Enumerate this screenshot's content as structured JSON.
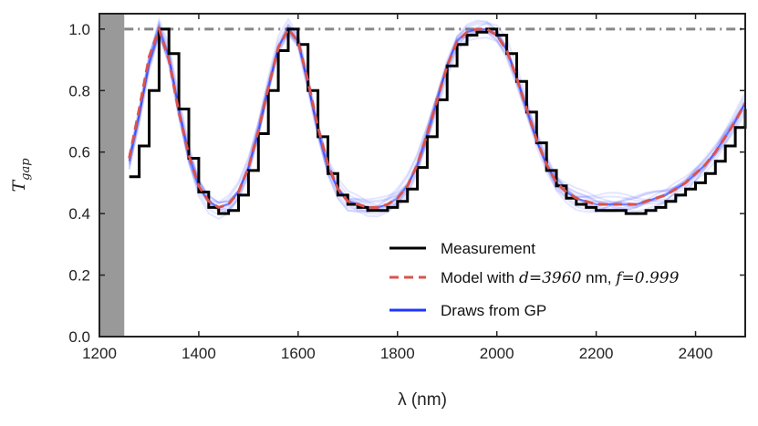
{
  "chart_data": {
    "type": "line",
    "xlabel": "λ (nm)",
    "ylabel": "T_gap",
    "ylabel_main": "T",
    "ylabel_sub": "gap",
    "xlim": [
      1200,
      2500
    ],
    "ylim": [
      0.0,
      1.05
    ],
    "xticks": [
      1200,
      1400,
      1600,
      1800,
      2000,
      2200,
      2400
    ],
    "yticks": [
      0.0,
      0.2,
      0.4,
      0.6,
      0.8,
      1.0
    ],
    "xtick_labels": [
      "1200",
      "1400",
      "1600",
      "1800",
      "2000",
      "2200",
      "2400"
    ],
    "ytick_labels": [
      "0.0",
      "0.2",
      "0.4",
      "0.6",
      "0.8",
      "1.0"
    ],
    "shaded_region": {
      "x": [
        1200,
        1250
      ],
      "color": "#999999"
    },
    "reference_line": {
      "y": 1.0,
      "style": "dash-dot",
      "color": "#888888"
    },
    "legend": {
      "placement": "bottom-right",
      "entries": [
        {
          "label": "Measurement",
          "color": "#000000",
          "style": "solid"
        },
        {
          "label": "Model with d=3960 nm, f=0.999",
          "label_pre": "Model with ",
          "label_d": "d",
          "label_d_val": "=3960",
          "label_mid": " nm, ",
          "label_f": "f",
          "label_f_val": "=0.999",
          "color": "#d9534f",
          "style": "dashed"
        },
        {
          "label": "Draws from GP",
          "color": "#1f35ff",
          "style": "solid"
        }
      ]
    },
    "series": [
      {
        "name": "Measurement",
        "color": "#000000",
        "style": "step",
        "x": [
          1260,
          1280,
          1300,
          1320,
          1340,
          1360,
          1380,
          1400,
          1420,
          1440,
          1460,
          1480,
          1500,
          1520,
          1540,
          1560,
          1580,
          1600,
          1620,
          1640,
          1660,
          1680,
          1700,
          1720,
          1740,
          1760,
          1780,
          1800,
          1820,
          1840,
          1860,
          1880,
          1900,
          1920,
          1940,
          1960,
          1980,
          2000,
          2020,
          2040,
          2060,
          2080,
          2100,
          2120,
          2140,
          2160,
          2180,
          2200,
          2220,
          2240,
          2260,
          2280,
          2300,
          2320,
          2340,
          2360,
          2380,
          2400,
          2420,
          2440,
          2460,
          2480,
          2500
        ],
        "y": [
          0.52,
          0.62,
          0.8,
          1.0,
          0.92,
          0.74,
          0.58,
          0.47,
          0.42,
          0.4,
          0.41,
          0.46,
          0.54,
          0.66,
          0.8,
          0.93,
          1.0,
          0.95,
          0.8,
          0.65,
          0.53,
          0.46,
          0.43,
          0.42,
          0.41,
          0.41,
          0.42,
          0.44,
          0.48,
          0.55,
          0.65,
          0.77,
          0.88,
          0.95,
          0.98,
          0.99,
          1.0,
          0.98,
          0.92,
          0.83,
          0.73,
          0.63,
          0.54,
          0.49,
          0.45,
          0.43,
          0.42,
          0.41,
          0.41,
          0.41,
          0.4,
          0.4,
          0.41,
          0.42,
          0.44,
          0.46,
          0.48,
          0.5,
          0.53,
          0.57,
          0.62,
          0.68,
          0.74
        ]
      },
      {
        "name": "Model with d=3960 nm, f=0.999",
        "color": "#d9534f",
        "style": "dashed",
        "x": [
          1260,
          1280,
          1300,
          1320,
          1340,
          1360,
          1380,
          1400,
          1420,
          1440,
          1460,
          1480,
          1500,
          1520,
          1540,
          1560,
          1580,
          1600,
          1620,
          1640,
          1660,
          1680,
          1700,
          1720,
          1740,
          1760,
          1780,
          1800,
          1820,
          1840,
          1860,
          1880,
          1900,
          1920,
          1940,
          1960,
          1980,
          2000,
          2020,
          2040,
          2060,
          2080,
          2100,
          2120,
          2140,
          2160,
          2180,
          2200,
          2220,
          2240,
          2260,
          2280,
          2300,
          2320,
          2340,
          2360,
          2380,
          2400,
          2420,
          2440,
          2460,
          2480,
          2500
        ],
        "y": [
          0.58,
          0.74,
          0.91,
          1.0,
          0.9,
          0.73,
          0.59,
          0.49,
          0.44,
          0.42,
          0.43,
          0.47,
          0.55,
          0.67,
          0.81,
          0.94,
          1.0,
          0.96,
          0.83,
          0.68,
          0.56,
          0.48,
          0.44,
          0.43,
          0.42,
          0.42,
          0.43,
          0.45,
          0.49,
          0.56,
          0.66,
          0.77,
          0.88,
          0.96,
          0.99,
          1.0,
          1.0,
          0.98,
          0.93,
          0.84,
          0.74,
          0.64,
          0.56,
          0.5,
          0.47,
          0.45,
          0.44,
          0.43,
          0.43,
          0.43,
          0.43,
          0.43,
          0.44,
          0.45,
          0.46,
          0.48,
          0.5,
          0.53,
          0.56,
          0.6,
          0.65,
          0.7,
          0.76
        ]
      },
      {
        "name": "Draws from GP",
        "color": "#1f35ff",
        "style": "solid",
        "x": [
          1260,
          1280,
          1300,
          1320,
          1340,
          1360,
          1380,
          1400,
          1420,
          1440,
          1460,
          1480,
          1500,
          1520,
          1540,
          1560,
          1580,
          1600,
          1620,
          1640,
          1660,
          1680,
          1700,
          1720,
          1740,
          1760,
          1780,
          1800,
          1820,
          1840,
          1860,
          1880,
          1900,
          1920,
          1940,
          1960,
          1980,
          2000,
          2020,
          2040,
          2060,
          2080,
          2100,
          2120,
          2140,
          2160,
          2180,
          2200,
          2220,
          2240,
          2260,
          2280,
          2300,
          2320,
          2340,
          2360,
          2380,
          2400,
          2420,
          2440,
          2460,
          2480,
          2500
        ],
        "y": [
          0.57,
          0.72,
          0.89,
          1.0,
          0.91,
          0.74,
          0.59,
          0.49,
          0.44,
          0.42,
          0.43,
          0.47,
          0.55,
          0.67,
          0.81,
          0.94,
          1.0,
          0.96,
          0.82,
          0.67,
          0.55,
          0.48,
          0.44,
          0.43,
          0.42,
          0.42,
          0.43,
          0.45,
          0.49,
          0.56,
          0.66,
          0.77,
          0.88,
          0.96,
          0.99,
          1.0,
          1.0,
          0.98,
          0.93,
          0.84,
          0.74,
          0.64,
          0.56,
          0.5,
          0.47,
          0.45,
          0.44,
          0.43,
          0.43,
          0.43,
          0.43,
          0.43,
          0.44,
          0.45,
          0.46,
          0.48,
          0.5,
          0.53,
          0.56,
          0.6,
          0.65,
          0.7,
          0.76
        ]
      }
    ]
  }
}
